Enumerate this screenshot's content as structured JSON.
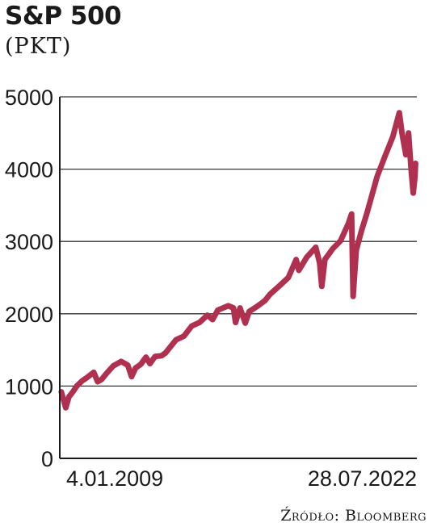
{
  "header": {
    "title": "S&P 500",
    "unit": "(PKT)"
  },
  "source": "Źródło: Bloomberg",
  "colors": {
    "line": "#b0304f",
    "grid": "#333333",
    "axis": "#1a1a1a"
  },
  "chart_data": {
    "type": "line",
    "title": "S&P 500",
    "ylabel": "(PKT)",
    "xlabel": "",
    "x_tick_labels": [
      "4.01.2009",
      "28.07.2022"
    ],
    "y_tick_labels": [
      "0",
      "1000",
      "2000",
      "3000",
      "4000",
      "5000"
    ],
    "ylim": [
      0,
      5000
    ],
    "grid": "horizontal",
    "series": [
      {
        "values": [
          [
            2009.01,
            920
          ],
          [
            2009.1,
            800
          ],
          [
            2009.18,
            700
          ],
          [
            2009.3,
            850
          ],
          [
            2009.45,
            920
          ],
          [
            2009.6,
            1000
          ],
          [
            2009.8,
            1070
          ],
          [
            2010.0,
            1120
          ],
          [
            2010.25,
            1190
          ],
          [
            2010.4,
            1060
          ],
          [
            2010.55,
            1090
          ],
          [
            2010.75,
            1180
          ],
          [
            2011.0,
            1280
          ],
          [
            2011.3,
            1340
          ],
          [
            2011.55,
            1290
          ],
          [
            2011.7,
            1130
          ],
          [
            2011.85,
            1250
          ],
          [
            2012.05,
            1300
          ],
          [
            2012.25,
            1400
          ],
          [
            2012.4,
            1310
          ],
          [
            2012.6,
            1410
          ],
          [
            2012.85,
            1420
          ],
          [
            2013.0,
            1460
          ],
          [
            2013.4,
            1640
          ],
          [
            2013.7,
            1690
          ],
          [
            2014.0,
            1830
          ],
          [
            2014.3,
            1880
          ],
          [
            2014.6,
            1980
          ],
          [
            2014.8,
            1920
          ],
          [
            2015.0,
            2050
          ],
          [
            2015.4,
            2110
          ],
          [
            2015.6,
            2080
          ],
          [
            2015.68,
            1880
          ],
          [
            2015.85,
            2080
          ],
          [
            2016.05,
            1870
          ],
          [
            2016.2,
            2030
          ],
          [
            2016.5,
            2100
          ],
          [
            2016.8,
            2180
          ],
          [
            2017.0,
            2270
          ],
          [
            2017.4,
            2400
          ],
          [
            2017.7,
            2500
          ],
          [
            2018.0,
            2750
          ],
          [
            2018.1,
            2600
          ],
          [
            2018.4,
            2780
          ],
          [
            2018.75,
            2920
          ],
          [
            2018.9,
            2700
          ],
          [
            2018.98,
            2380
          ],
          [
            2019.1,
            2750
          ],
          [
            2019.4,
            2900
          ],
          [
            2019.7,
            3010
          ],
          [
            2020.0,
            3250
          ],
          [
            2020.12,
            3380
          ],
          [
            2020.18,
            2240
          ],
          [
            2020.3,
            2880
          ],
          [
            2020.5,
            3150
          ],
          [
            2020.7,
            3380
          ],
          [
            2020.9,
            3640
          ],
          [
            2021.1,
            3900
          ],
          [
            2021.4,
            4180
          ],
          [
            2021.7,
            4450
          ],
          [
            2021.95,
            4780
          ],
          [
            2022.05,
            4500
          ],
          [
            2022.2,
            4200
          ],
          [
            2022.3,
            4500
          ],
          [
            2022.4,
            4000
          ],
          [
            2022.48,
            3670
          ],
          [
            2022.55,
            3900
          ],
          [
            2022.57,
            4080
          ]
        ]
      }
    ]
  }
}
